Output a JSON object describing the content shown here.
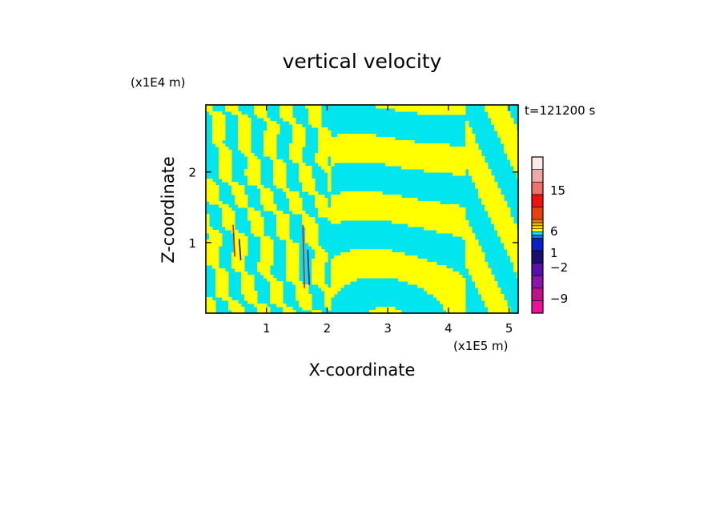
{
  "chart_data": {
    "type": "heatmap",
    "title": "vertical velocity",
    "xlabel": "X-coordinate",
    "ylabel": "Z-coordinate",
    "x_unit": "(x1E5 m)",
    "y_unit": "(x1E4 m)",
    "time_label": "t=121200 s",
    "xlim": [
      0.0,
      5.15
    ],
    "ylim": [
      0.0,
      2.95
    ],
    "x_ticks": [
      {
        "value": 1,
        "label": "1"
      },
      {
        "value": 2,
        "label": "2"
      },
      {
        "value": 3,
        "label": "3"
      },
      {
        "value": 4,
        "label": "4"
      },
      {
        "value": 5,
        "label": "5"
      }
    ],
    "y_ticks": [
      {
        "value": 1,
        "label": "1"
      },
      {
        "value": 2,
        "label": "2"
      }
    ],
    "colorbar": {
      "levels": [
        {
          "color": "#f0109b"
        },
        {
          "color": "#c0108a"
        },
        {
          "color": "#8a15a8"
        },
        {
          "color": "#5a10a8"
        },
        {
          "color": "#1a1070"
        },
        {
          "color": "#0a1fcc"
        },
        {
          "color": "#1e6fff"
        },
        {
          "color": "#00e5ee"
        },
        {
          "color": "#ffff00"
        },
        {
          "color": "#ffe000"
        },
        {
          "color": "#ffb000"
        },
        {
          "color": "#f08000"
        },
        {
          "color": "#e84010"
        },
        {
          "color": "#ee1111"
        },
        {
          "color": "#f07070"
        },
        {
          "color": "#f0a8a8"
        },
        {
          "color": "#ffe8e8"
        }
      ],
      "labels": [
        "15",
        "6",
        "1",
        "−2",
        "−9"
      ]
    },
    "dominant_colors": {
      "positive": "#ffff00",
      "negative": "#00e5ee",
      "strong_positive": "#ee1111",
      "strong_negative": "#1a1070"
    }
  }
}
